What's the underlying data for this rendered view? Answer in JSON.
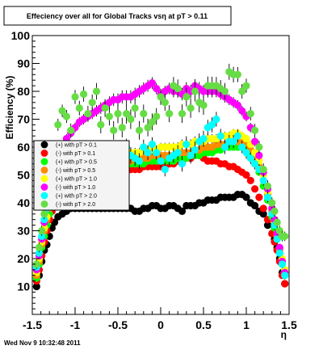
{
  "footer_timestamp": "Wed Nov  9 10:32:48 2011",
  "chart_data": {
    "type": "scatter",
    "title": "Effeciency over all for Global Tracks vsη at pT > 0.11",
    "xlabel": "η",
    "ylabel": "Efficiency (%)",
    "xlim": [
      -1.5,
      1.5
    ],
    "ylim": [
      0,
      100
    ],
    "x_ticks": [
      "-1.5",
      "-1",
      "-0.5",
      "0",
      "0.5",
      "1",
      "1.5"
    ],
    "y_ticks": [
      "10",
      "20",
      "30",
      "40",
      "50",
      "60",
      "70",
      "80",
      "90",
      "100"
    ],
    "grid": false,
    "legend_position": "left-center",
    "series": [
      {
        "name": "(+) with pT > 0.1",
        "color": "#000000",
        "x": [
          -1.45,
          -1.42,
          -1.39,
          -1.36,
          -1.33,
          -1.3,
          -1.27,
          -1.24,
          -1.2,
          -1.15,
          -1.1,
          -1.05,
          -1.0,
          -0.95,
          -0.9,
          -0.85,
          -0.8,
          -0.75,
          -0.7,
          -0.65,
          -0.6,
          -0.55,
          -0.5,
          -0.45,
          -0.4,
          -0.35,
          -0.3,
          -0.25,
          -0.2,
          -0.15,
          -0.1,
          -0.05,
          0.0,
          0.05,
          0.1,
          0.15,
          0.2,
          0.25,
          0.3,
          0.35,
          0.4,
          0.45,
          0.5,
          0.55,
          0.6,
          0.65,
          0.7,
          0.75,
          0.8,
          0.85,
          0.9,
          0.95,
          1.0,
          1.05,
          1.1,
          1.15,
          1.2,
          1.25,
          1.3,
          1.33,
          1.36,
          1.39,
          1.42,
          1.45
        ],
        "y": [
          10,
          14,
          19,
          23,
          25,
          28,
          31,
          33,
          35,
          36,
          37,
          38,
          38,
          38,
          38,
          38,
          38,
          38,
          38,
          38,
          38,
          38,
          38,
          38,
          38,
          38,
          37,
          37,
          38,
          38,
          39,
          39,
          38,
          38,
          39,
          39,
          38,
          37,
          39,
          39,
          39,
          40,
          40,
          41,
          41,
          41,
          42,
          42,
          42,
          42,
          43,
          43,
          42,
          40,
          39,
          37,
          36,
          32,
          29,
          27,
          24,
          20,
          15,
          11
        ]
      },
      {
        "name": "(-) with pT > 0.1",
        "color": "#ff0000",
        "x": [
          -1.45,
          -1.42,
          -1.39,
          -1.36,
          -1.33,
          -1.3,
          -1.27,
          -1.24,
          -1.2,
          -1.15,
          -1.1,
          -1.05,
          -1.0,
          -0.95,
          -0.9,
          -0.85,
          -0.8,
          -0.75,
          -0.7,
          -0.65,
          -0.6,
          -0.55,
          -0.5,
          -0.45,
          -0.4,
          -0.35,
          -0.3,
          -0.25,
          -0.2,
          -0.15,
          -0.1,
          -0.05,
          0.0,
          0.05,
          0.1,
          0.15,
          0.2,
          0.25,
          0.3,
          0.35,
          0.4,
          0.45,
          0.5,
          0.55,
          0.6,
          0.65,
          0.7,
          0.75,
          0.8,
          0.85,
          0.9,
          0.95,
          1.0,
          1.05,
          1.1,
          1.15,
          1.2,
          1.25,
          1.3,
          1.33,
          1.36,
          1.39,
          1.42,
          1.45
        ],
        "y": [
          12,
          16,
          21,
          26,
          30,
          34,
          37,
          40,
          44,
          46,
          48,
          49,
          50,
          51,
          51,
          52,
          52,
          52,
          52,
          52,
          52,
          52,
          52,
          52,
          52,
          52,
          52,
          52,
          53,
          53,
          53,
          53,
          53,
          53,
          54,
          54,
          55,
          55,
          56,
          56,
          57,
          57,
          56,
          55,
          55,
          55,
          54,
          54,
          53,
          53,
          52,
          51,
          50,
          48,
          45,
          42,
          38,
          34,
          29,
          26,
          23,
          19,
          14,
          11
        ]
      },
      {
        "name": "(+) with pT > 0.5",
        "color": "#00ff00",
        "x": [
          -1.45,
          -1.42,
          -1.39,
          -1.36,
          -1.33,
          -1.3,
          -1.27,
          -1.24,
          -1.2,
          -1.15,
          -1.1,
          -1.05,
          -1.0,
          -0.95,
          -0.9,
          -0.85,
          -0.8,
          -0.75,
          -0.7,
          -0.65,
          -0.6,
          -0.55,
          -0.5,
          -0.45,
          -0.4,
          -0.35,
          -0.3,
          -0.25,
          -0.2,
          -0.15,
          -0.1,
          -0.05,
          0.0,
          0.05,
          0.1,
          0.15,
          0.2,
          0.25,
          0.3,
          0.35,
          0.4,
          0.45,
          0.5,
          0.55,
          0.6,
          0.65,
          0.7,
          0.75,
          0.8,
          0.85,
          0.9,
          0.95,
          1.0,
          1.05,
          1.1,
          1.15,
          1.2,
          1.25,
          1.3,
          1.33,
          1.36,
          1.39,
          1.42,
          1.45
        ],
        "y": [
          13,
          18,
          24,
          28,
          32,
          36,
          40,
          43,
          46,
          48,
          50,
          51,
          52,
          52,
          53,
          53,
          53,
          53,
          53,
          53,
          53,
          53,
          53,
          53,
          54,
          54,
          54,
          54,
          54,
          55,
          55,
          55,
          55,
          55,
          55,
          55,
          56,
          56,
          56,
          57,
          57,
          57,
          58,
          58,
          58,
          59,
          59,
          60,
          60,
          60,
          60,
          60,
          59,
          57,
          54,
          51,
          46,
          41,
          35,
          31,
          27,
          22,
          18,
          14
        ]
      },
      {
        "name": "(-) with pT > 0.5",
        "color": "#ff8c00",
        "x": [
          -1.45,
          -1.42,
          -1.39,
          -1.36,
          -1.33,
          -1.3,
          -1.27,
          -1.24,
          -1.2,
          -1.15,
          -1.1,
          -1.05,
          -1.0,
          -0.95,
          -0.9,
          -0.85,
          -0.8,
          -0.75,
          -0.7,
          -0.65,
          -0.6,
          -0.55,
          -0.5,
          -0.45,
          -0.4,
          -0.35,
          -0.3,
          -0.25,
          -0.2,
          -0.15,
          -0.1,
          -0.05,
          0.0,
          0.05,
          0.1,
          0.15,
          0.2,
          0.25,
          0.3,
          0.35,
          0.4,
          0.45,
          0.5,
          0.55,
          0.6,
          0.65,
          0.7,
          0.75,
          0.8,
          0.85,
          0.9,
          0.95,
          1.0,
          1.05,
          1.1,
          1.15,
          1.2,
          1.25,
          1.3,
          1.33,
          1.36,
          1.39,
          1.42,
          1.45
        ],
        "y": [
          14,
          19,
          25,
          30,
          34,
          38,
          42,
          45,
          48,
          50,
          52,
          53,
          54,
          54,
          54,
          54,
          55,
          55,
          55,
          55,
          55,
          55,
          55,
          55,
          55,
          55,
          56,
          56,
          56,
          56,
          57,
          57,
          57,
          57,
          57,
          57,
          58,
          58,
          58,
          58,
          59,
          59,
          60,
          60,
          60,
          61,
          61,
          61,
          62,
          62,
          62,
          62,
          61,
          59,
          56,
          53,
          48,
          43,
          37,
          33,
          28,
          23,
          19,
          15
        ]
      },
      {
        "name": "(+) with pT > 1.0",
        "color": "#ffff00",
        "x": [
          -1.45,
          -1.42,
          -1.39,
          -1.36,
          -1.33,
          -1.3,
          -1.27,
          -1.24,
          -1.2,
          -1.15,
          -1.1,
          -1.05,
          -1.0,
          -0.95,
          -0.9,
          -0.85,
          -0.8,
          -0.75,
          -0.7,
          -0.65,
          -0.6,
          -0.55,
          -0.5,
          -0.45,
          -0.4,
          -0.35,
          -0.3,
          -0.25,
          -0.2,
          -0.15,
          -0.1,
          -0.05,
          0.0,
          0.05,
          0.1,
          0.15,
          0.2,
          0.25,
          0.3,
          0.35,
          0.4,
          0.45,
          0.5,
          0.55,
          0.6,
          0.65,
          0.7,
          0.75,
          0.8,
          0.85,
          0.9,
          0.95,
          1.0,
          1.05,
          1.1,
          1.15,
          1.2,
          1.25,
          1.3,
          1.33,
          1.36,
          1.39,
          1.42,
          1.45
        ],
        "y": [
          15,
          20,
          26,
          31,
          35,
          39,
          43,
          46,
          49,
          51,
          53,
          54,
          55,
          55,
          56,
          56,
          56,
          56,
          57,
          57,
          57,
          57,
          57,
          58,
          58,
          58,
          58,
          58,
          59,
          59,
          59,
          59,
          60,
          60,
          60,
          60,
          60,
          61,
          61,
          61,
          62,
          62,
          62,
          63,
          63,
          63,
          64,
          64,
          64,
          65,
          65,
          64,
          63,
          61,
          58,
          55,
          50,
          44,
          38,
          34,
          29,
          24,
          20,
          16
        ]
      },
      {
        "name": "(-) with pT > 1.0",
        "color": "#ff00ff",
        "x": [
          -1.45,
          -1.42,
          -1.39,
          -1.36,
          -1.33,
          -1.3,
          -1.27,
          -1.24,
          -1.2,
          -1.15,
          -1.1,
          -1.05,
          -1.0,
          -0.95,
          -0.9,
          -0.85,
          -0.8,
          -0.75,
          -0.7,
          -0.65,
          -0.6,
          -0.55,
          -0.5,
          -0.45,
          -0.4,
          -0.35,
          -0.3,
          -0.25,
          -0.2,
          -0.15,
          -0.1,
          -0.05,
          0.0,
          0.05,
          0.1,
          0.15,
          0.2,
          0.25,
          0.3,
          0.35,
          0.4,
          0.45,
          0.5,
          0.55,
          0.6,
          0.65,
          0.7,
          0.75,
          0.8,
          0.85,
          0.9,
          0.95,
          1.0,
          1.05,
          1.1,
          1.15,
          1.2,
          1.25,
          1.3,
          1.33,
          1.36,
          1.39,
          1.42,
          1.45
        ],
        "y": [
          16,
          21,
          27,
          33,
          38,
          43,
          48,
          52,
          56,
          60,
          63,
          65,
          67,
          69,
          70,
          71,
          72,
          73,
          74,
          75,
          76,
          77,
          77,
          78,
          78,
          78,
          79,
          80,
          81,
          82,
          83,
          81,
          79,
          80,
          81,
          80,
          80,
          79,
          81,
          80,
          82,
          81,
          80,
          80,
          80,
          80,
          79,
          78,
          77,
          76,
          75,
          73,
          71,
          67,
          62,
          57,
          51,
          45,
          38,
          34,
          29,
          24,
          19,
          15
        ]
      },
      {
        "name": "(+) with pT > 2.0",
        "color": "#00ffff",
        "x": [
          -1.45,
          -1.42,
          -1.39,
          -1.36,
          -1.33,
          -1.3,
          -1.27,
          -1.24,
          -1.2,
          -1.15,
          -1.1,
          -1.05,
          -1.0,
          -0.95,
          -0.9,
          -0.85,
          -0.8,
          -0.75,
          -0.7,
          -0.65,
          -0.6,
          -0.55,
          -0.5,
          -0.45,
          -0.4,
          -0.35,
          -0.3,
          -0.25,
          -0.2,
          -0.15,
          -0.1,
          -0.05,
          0.0,
          0.05,
          0.1,
          0.15,
          0.2,
          0.25,
          0.3,
          0.35,
          0.4,
          0.45,
          0.5,
          0.55,
          0.6,
          0.65,
          0.7,
          0.75,
          0.8,
          0.85,
          0.9,
          0.95,
          1.0,
          1.05,
          1.1,
          1.15,
          1.2,
          1.25,
          1.3,
          1.33,
          1.36,
          1.39,
          1.42,
          1.45
        ],
        "y": [
          17,
          22,
          28,
          34,
          38,
          42,
          46,
          49,
          52,
          54,
          55,
          56,
          57,
          58,
          58,
          59,
          58,
          57,
          58,
          56,
          55,
          56,
          57,
          58,
          60,
          57,
          56,
          55,
          60,
          58,
          61,
          58,
          55,
          52,
          56,
          57,
          58,
          54,
          61,
          57,
          59,
          62,
          63,
          67,
          68,
          70,
          64,
          60,
          62,
          62,
          64,
          60,
          58,
          56,
          54,
          52,
          48,
          42,
          36,
          32,
          27,
          22,
          18,
          14
        ]
      },
      {
        "name": "(-) with pT > 2.0",
        "color": "#66dd44",
        "x": [
          -1.45,
          -1.42,
          -1.39,
          -1.36,
          -1.33,
          -1.3,
          -1.27,
          -1.24,
          -1.2,
          -1.15,
          -1.1,
          -1.05,
          -1.0,
          -0.95,
          -0.9,
          -0.85,
          -0.8,
          -0.75,
          -0.7,
          -0.65,
          -0.6,
          -0.55,
          -0.5,
          -0.45,
          -0.4,
          -0.35,
          -0.3,
          -0.25,
          -0.2,
          -0.15,
          -0.1,
          -0.05,
          0.0,
          0.05,
          0.1,
          0.15,
          0.2,
          0.25,
          0.3,
          0.35,
          0.4,
          0.45,
          0.5,
          0.55,
          0.6,
          0.65,
          0.7,
          0.75,
          0.8,
          0.85,
          0.9,
          0.95,
          1.0,
          1.05,
          1.1,
          1.15,
          1.2,
          1.25,
          1.3,
          1.33,
          1.36,
          1.39,
          1.42,
          1.45
        ],
        "y": [
          18,
          24,
          30,
          36,
          42,
          48,
          54,
          60,
          68,
          73,
          71,
          66,
          78,
          74,
          79,
          72,
          76,
          80,
          68,
          74,
          71,
          66,
          72,
          67,
          72,
          70,
          74,
          66,
          72,
          67,
          69,
          71,
          78,
          76,
          72,
          82,
          81,
          72,
          78,
          74,
          80,
          76,
          75,
          82,
          82,
          82,
          81,
          80,
          87,
          86,
          86,
          80,
          82,
          72,
          66,
          60,
          52,
          46,
          40,
          37,
          33,
          30,
          28,
          28
        ]
      }
    ]
  }
}
